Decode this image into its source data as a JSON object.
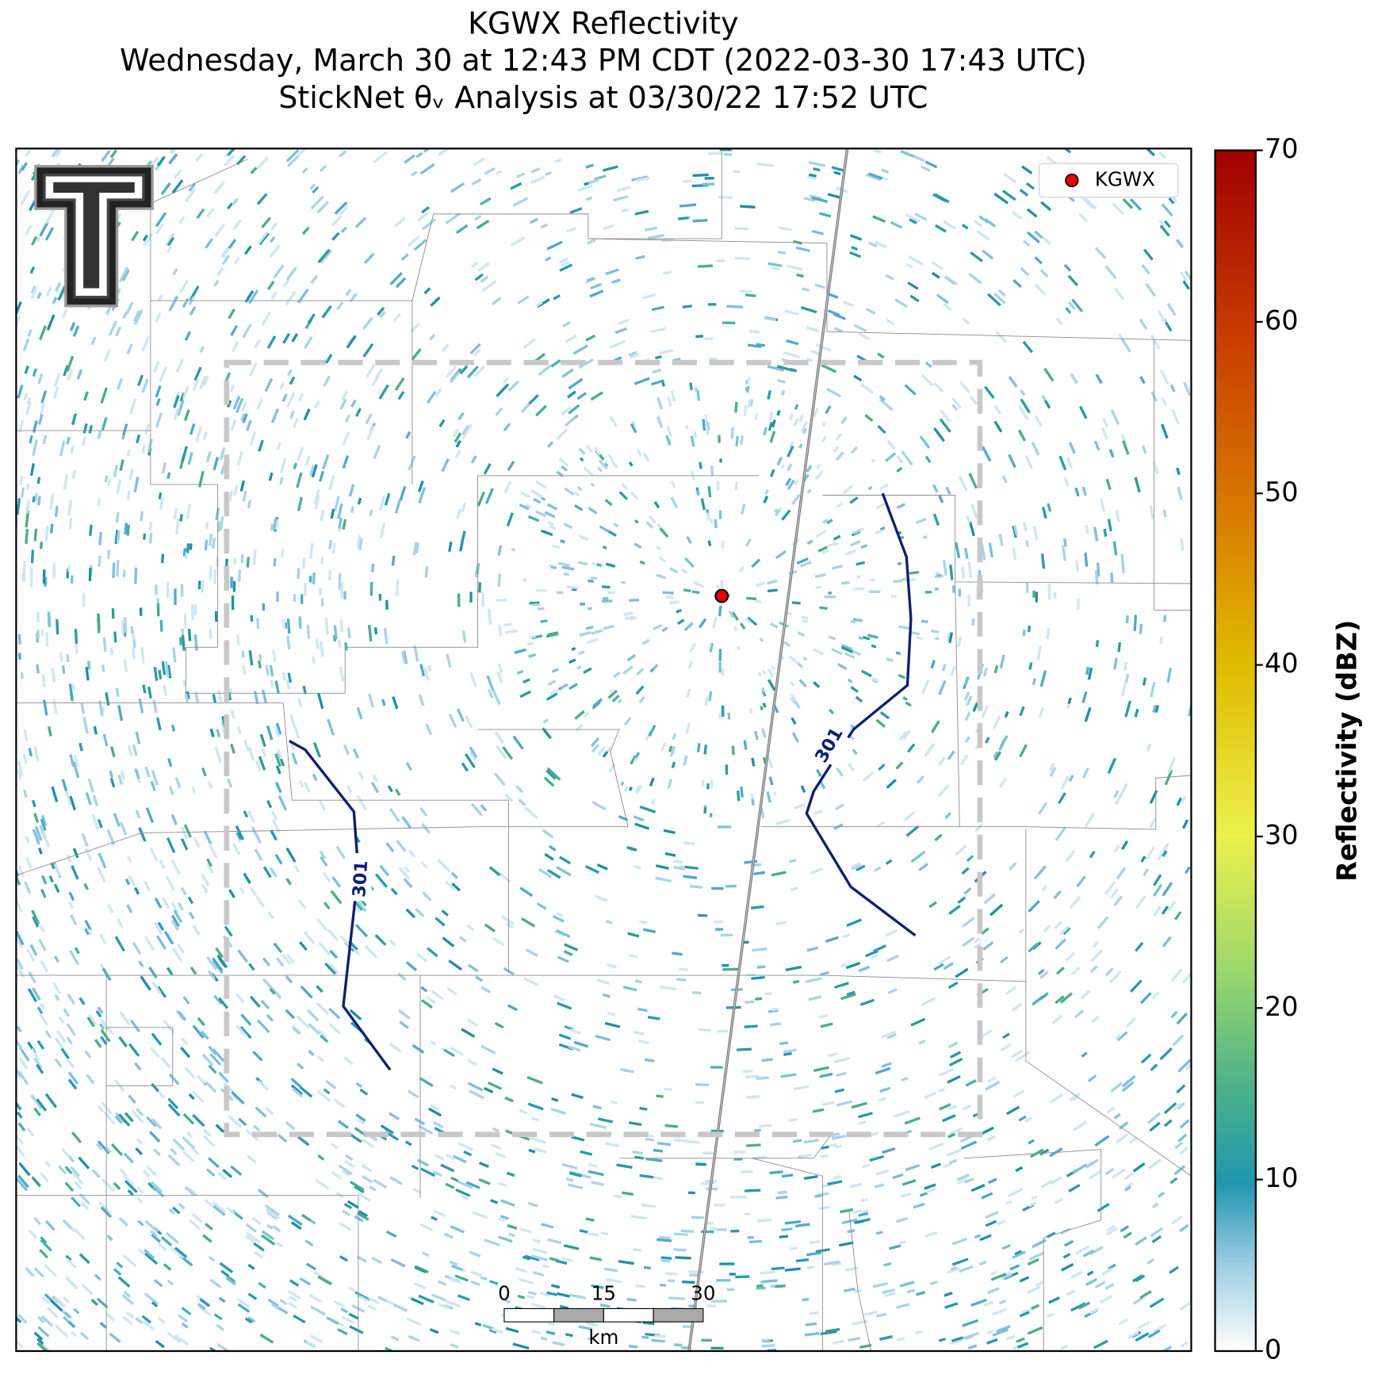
{
  "header": {
    "title": [
      "KGWX Reflectivity",
      "Wednesday, March 30 at 12:43 PM CDT (2022-03-30 17:43 UTC)",
      "StickNet θᵥ Analysis at 03/30/22 17:52 UTC"
    ]
  },
  "legend": {
    "label": "KGWX",
    "color": "#e8000b"
  },
  "contour_level": 301,
  "colorbar": {
    "label": "Reflectivity (dBZ)",
    "lim": [
      0,
      70
    ],
    "ticks": [
      0,
      10,
      20,
      30,
      40,
      50,
      60,
      70
    ]
  },
  "scale_bar": {
    "ticks": [
      0,
      15,
      30
    ],
    "unit": "km"
  }
}
